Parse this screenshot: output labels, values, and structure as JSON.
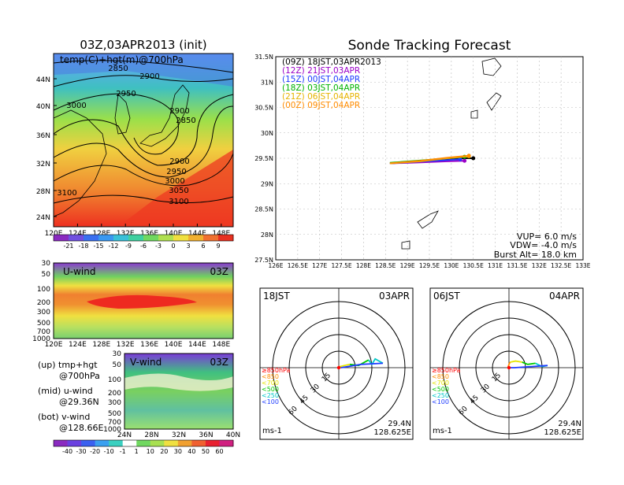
{
  "panels": {
    "upper_map": {
      "title": "03Z,03APR2013 (init)",
      "label": "temp(C)+hgt(m)@700hPa",
      "lat_ticks": [
        "44N",
        "40N",
        "36N",
        "32N",
        "28N",
        "24N"
      ],
      "lon_ticks": [
        "120E",
        "124E",
        "128E",
        "132E",
        "136E",
        "140E",
        "144E",
        "148E"
      ],
      "contour_labels": [
        "2850",
        "2900",
        "2950",
        "3000",
        "2900",
        "2850",
        "2900",
        "2950",
        "3000",
        "3050",
        "3100",
        "3100"
      ]
    },
    "temp_colorbar": {
      "labels": [
        "-21",
        "-18",
        "-15",
        "-12",
        "-9",
        "-6",
        "-3",
        "0",
        "3",
        "6",
        "9"
      ]
    },
    "uwind": {
      "label": "U-wind",
      "time": "03Z",
      "p_ticks": [
        "30",
        "50",
        "100",
        "200",
        "300",
        "500",
        "700",
        "1000"
      ],
      "lon_ticks": [
        "120E",
        "124E",
        "128E",
        "132E",
        "136E",
        "140E",
        "144E",
        "148E"
      ]
    },
    "vwind": {
      "label": "V-wind",
      "time": "03Z",
      "p_ticks": [
        "30",
        "50",
        "100",
        "200",
        "300",
        "500",
        "700",
        "1000"
      ],
      "lat_ticks": [
        "24N",
        "28N",
        "32N",
        "36N",
        "40N"
      ]
    },
    "notes": {
      "up": "(up) tmp+hgt",
      "up2": "@700hPa",
      "mid": "(mid) u-wind",
      "mid2": "@29.36N",
      "bot": "(bot) v-wind",
      "bot2": "@128.66E"
    },
    "wind_colorbar": {
      "labels": [
        "-40",
        "-30",
        "-20",
        "-10",
        "-1",
        "1",
        "10",
        "20",
        "30",
        "40",
        "50",
        "60"
      ]
    },
    "tracking": {
      "title": "Sonde Tracking Forecast",
      "lat_ticks": [
        "31.5N",
        "31N",
        "30.5N",
        "30N",
        "29.5N",
        "29N",
        "28.5N",
        "28N",
        "27.5N"
      ],
      "lon_ticks": [
        "126E",
        "126.5E",
        "127E",
        "127.5E",
        "128E",
        "128.5E",
        "129E",
        "129.5E",
        "130E",
        "130.5E",
        "131E",
        "131.5E",
        "132E",
        "132.5E",
        "133E"
      ],
      "vup": "VUP= 6.0 m/s",
      "vdw": "VDW= -4.0 m/s",
      "burst": "Burst Alt= 18.0 km"
    },
    "hodo_left": {
      "time": "18JST",
      "date": "03APR",
      "lat": "29.4N",
      "lon": "128.625E",
      "unit": "ms-1"
    },
    "hodo_right": {
      "time": "06JST",
      "date": "04APR",
      "lat": "29.4N",
      "lon": "128.625E",
      "unit": "ms-1"
    },
    "hodo_rings": [
      "15",
      "30",
      "45",
      "60"
    ]
  },
  "chart_data": [
    {
      "type": "line",
      "title": "Sonde Tracking Forecast",
      "x_range": [
        126,
        133
      ],
      "y_range": [
        27.5,
        31.5
      ],
      "series": [
        {
          "name": "(09Z) 18JST,03APR2013",
          "color": "#000000",
          "x": [
            128.6,
            129.3,
            129.9,
            130.3,
            130.5
          ],
          "y": [
            29.4,
            29.44,
            29.47,
            29.5,
            29.5
          ]
        },
        {
          "name": "(12Z) 21JST,03APR",
          "color": "#9b00c8",
          "x": [
            128.6,
            129.3,
            129.9,
            130.3
          ],
          "y": [
            29.4,
            29.42,
            29.44,
            29.45
          ]
        },
        {
          "name": "(15Z) 00JST,04APR",
          "color": "#1e3cff",
          "x": [
            128.6,
            129.2,
            129.8,
            130.2
          ],
          "y": [
            29.4,
            29.43,
            29.46,
            29.48
          ]
        },
        {
          "name": "(18Z) 03JST,04APR",
          "color": "#00b400",
          "x": [
            128.6,
            129.2,
            129.8,
            130.3
          ],
          "y": [
            29.41,
            29.45,
            29.49,
            29.53
          ]
        },
        {
          "name": "(21Z) 06JST,04APR",
          "color": "#e6b400",
          "x": [
            128.6,
            129.3,
            129.9,
            130.4
          ],
          "y": [
            29.4,
            29.44,
            29.5,
            29.54
          ]
        },
        {
          "name": "(00Z) 09JST,04APR",
          "color": "#ff8c00",
          "x": [
            128.6,
            129.3,
            129.9,
            130.4
          ],
          "y": [
            29.4,
            29.45,
            29.51,
            29.55
          ]
        }
      ]
    },
    {
      "type": "line",
      "title": "18JST 03APR",
      "legend": [
        {
          "label": "≥850hPa",
          "color": "#ff0000"
        },
        {
          "label": "<850",
          "color": "#ff8c00"
        },
        {
          "label": "<700",
          "color": "#e6e600"
        },
        {
          "label": "<500",
          "color": "#00c800"
        },
        {
          "label": "<250",
          "color": "#00c8c8"
        },
        {
          "label": "<100",
          "color": "#1e3cff"
        }
      ],
      "series": [
        {
          "name": "<850",
          "color": "#ff8c00",
          "u": [
            -1,
            0,
            1
          ],
          "v": [
            0,
            1,
            1
          ]
        },
        {
          "name": "<700",
          "color": "#e6e600",
          "u": [
            1,
            5,
            10
          ],
          "v": [
            1,
            2,
            3
          ]
        },
        {
          "name": "<500",
          "color": "#00c800",
          "u": [
            10,
            18,
            27
          ],
          "v": [
            3,
            2,
            7
          ]
        },
        {
          "name": "<250",
          "color": "#00c8c8",
          "u": [
            27,
            30,
            33,
            40
          ],
          "v": [
            7,
            3,
            8,
            4
          ]
        },
        {
          "name": "<100",
          "color": "#1e3cff",
          "u": [
            40,
            20,
            2
          ],
          "v": [
            4,
            3,
            0
          ]
        }
      ]
    },
    {
      "type": "line",
      "title": "06JST 04APR",
      "legend": [
        {
          "label": "≥850hPa",
          "color": "#ff0000"
        },
        {
          "label": "<850",
          "color": "#ff8c00"
        },
        {
          "label": "<700",
          "color": "#e6e600"
        },
        {
          "label": "<500",
          "color": "#00c800"
        },
        {
          "label": "<250",
          "color": "#00c8c8"
        },
        {
          "label": "<100",
          "color": "#1e3cff"
        }
      ],
      "series": [
        {
          "name": "<850",
          "color": "#ff8c00",
          "u": [
            -1,
            0,
            1
          ],
          "v": [
            0,
            3,
            5
          ]
        },
        {
          "name": "<700",
          "color": "#e6e600",
          "u": [
            1,
            6,
            12
          ],
          "v": [
            5,
            6,
            5
          ]
        },
        {
          "name": "<500",
          "color": "#00c800",
          "u": [
            12,
            17,
            24
          ],
          "v": [
            5,
            3,
            4
          ]
        },
        {
          "name": "<250",
          "color": "#00c8c8",
          "u": [
            24,
            30,
            35
          ],
          "v": [
            4,
            1,
            2
          ]
        },
        {
          "name": "<100",
          "color": "#1e3cff",
          "u": [
            35,
            20,
            5,
            1
          ],
          "v": [
            2,
            1,
            0,
            0
          ]
        }
      ]
    }
  ]
}
